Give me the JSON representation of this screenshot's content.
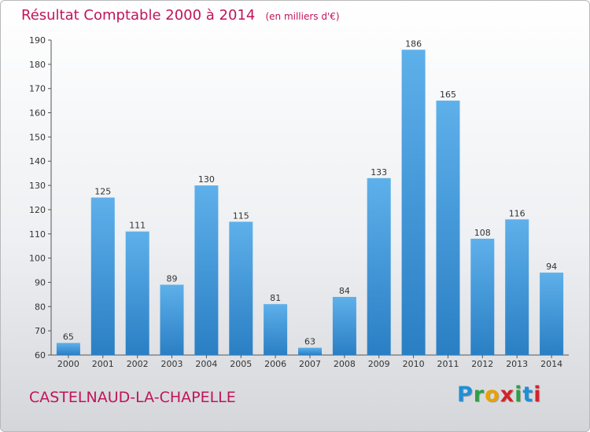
{
  "title": "Résultat Comptable 2000 à 2014",
  "subtitle": "(en milliers d'€)",
  "commune": "CASTELNAUD-LA-CHAPELLE",
  "logo": {
    "letters": [
      "P",
      "r",
      "o",
      "x",
      "i",
      "t",
      "i"
    ],
    "colors": [
      "#1f8fd6",
      "#2f9f45",
      "#e8a200",
      "#d2232a",
      "#2f9f45",
      "#1f8fd6",
      "#d2232a"
    ]
  },
  "chart_data": {
    "type": "bar",
    "title": "Résultat Comptable 2000 à 2014",
    "categories": [
      "2000",
      "2001",
      "2002",
      "2003",
      "2004",
      "2005",
      "2006",
      "2007",
      "2008",
      "2009",
      "2010",
      "2011",
      "2012",
      "2013",
      "2014"
    ],
    "values": [
      65,
      125,
      111,
      89,
      130,
      115,
      81,
      63,
      84,
      133,
      186,
      165,
      108,
      116,
      94
    ],
    "ylim": [
      60,
      190
    ],
    "yticks": [
      60,
      70,
      80,
      90,
      100,
      110,
      120,
      130,
      140,
      150,
      160,
      170,
      180,
      190
    ],
    "grid": false,
    "bar_color": "#3b93d8"
  }
}
